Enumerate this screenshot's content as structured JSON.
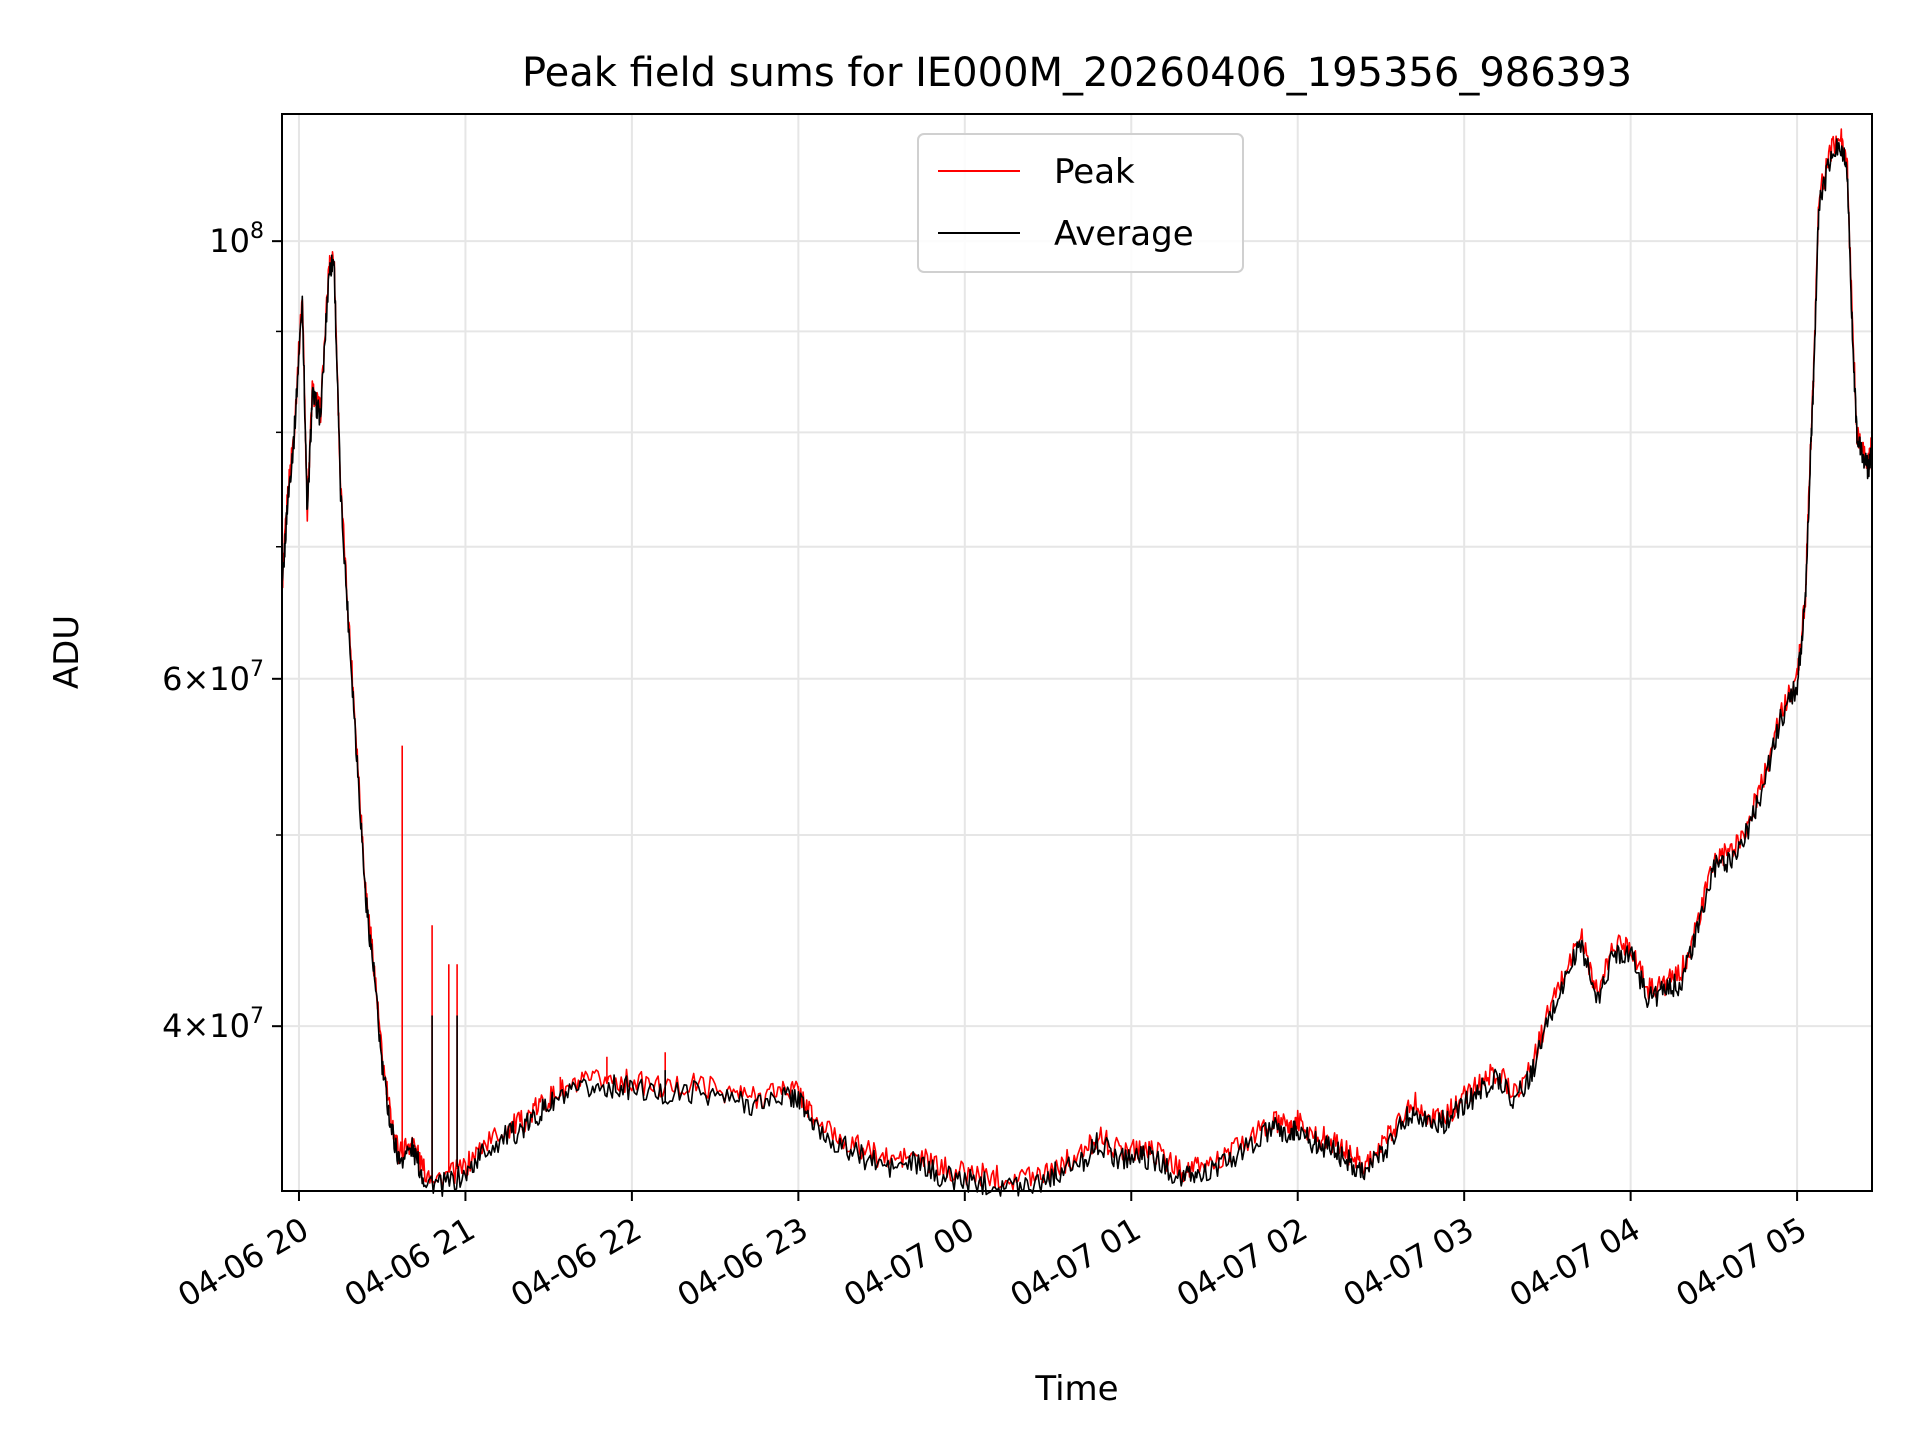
{
  "chart_data": {
    "type": "line",
    "title": "Peak field sums for IE000M_20260406_195356_986393",
    "xlabel": "Time",
    "ylabel": "ADU",
    "y_scale": "log",
    "ylim": [
      33000000,
      116000000
    ],
    "x_tick_labels": [
      "04-06 20",
      "04-06 21",
      "04-06 22",
      "04-06 23",
      "04-07 00",
      "04-07 01",
      "04-07 02",
      "04-07 03",
      "04-07 04",
      "04-07 05"
    ],
    "x_tick_hours": [
      20,
      21,
      22,
      23,
      24,
      25,
      26,
      27,
      28,
      29
    ],
    "xlim_hours": [
      19.898,
      29.45
    ],
    "y_major_ticks": [
      {
        "value": 40000000,
        "mantissa": "4",
        "exp": "7"
      },
      {
        "value": 60000000,
        "mantissa": "6",
        "exp": "7"
      },
      {
        "value": 100000000,
        "mantissa": "10",
        "exp": "8"
      }
    ],
    "y_minor_ticks": [
      50000000,
      70000000,
      80000000,
      90000000
    ],
    "legend": {
      "location": "upper center",
      "entries": [
        "Peak",
        "Average"
      ]
    },
    "series": [
      {
        "name": "Peak",
        "color": "#ff0000",
        "points": [
          [
            19.9,
            67000000
          ],
          [
            19.93,
            74000000
          ],
          [
            19.97,
            80000000
          ],
          [
            20.02,
            94000000
          ],
          [
            20.05,
            73000000
          ],
          [
            20.08,
            84000000
          ],
          [
            20.13,
            82000000
          ],
          [
            20.18,
            97000000
          ],
          [
            20.21,
            98500000
          ],
          [
            20.25,
            75000000
          ],
          [
            20.3,
            64000000
          ],
          [
            20.35,
            55000000
          ],
          [
            20.4,
            47000000
          ],
          [
            20.45,
            43000000
          ],
          [
            20.5,
            38500000
          ],
          [
            20.55,
            36000000
          ],
          [
            20.6,
            34500000
          ],
          [
            20.68,
            35000000
          ],
          [
            20.75,
            33800000
          ],
          [
            20.85,
            33500000
          ],
          [
            21.0,
            33900000
          ],
          [
            21.1,
            34800000
          ],
          [
            21.25,
            35500000
          ],
          [
            21.35,
            35800000
          ],
          [
            21.45,
            36500000
          ],
          [
            21.55,
            37000000
          ],
          [
            21.7,
            37400000
          ],
          [
            21.85,
            37600000
          ],
          [
            22.0,
            37500000
          ],
          [
            22.2,
            37200000
          ],
          [
            22.4,
            37400000
          ],
          [
            22.6,
            37000000
          ],
          [
            22.75,
            36800000
          ],
          [
            22.9,
            37200000
          ],
          [
            23.0,
            37100000
          ],
          [
            23.1,
            35800000
          ],
          [
            23.25,
            35100000
          ],
          [
            23.4,
            34600000
          ],
          [
            23.55,
            34200000
          ],
          [
            23.7,
            34400000
          ],
          [
            23.85,
            33900000
          ],
          [
            24.0,
            33700000
          ],
          [
            24.15,
            33600000
          ],
          [
            24.3,
            33500000
          ],
          [
            24.45,
            33700000
          ],
          [
            24.55,
            34000000
          ],
          [
            24.7,
            34400000
          ],
          [
            24.8,
            35200000
          ],
          [
            24.92,
            34600000
          ],
          [
            25.05,
            34700000
          ],
          [
            25.15,
            34500000
          ],
          [
            25.3,
            33800000
          ],
          [
            25.4,
            33900000
          ],
          [
            25.55,
            34300000
          ],
          [
            25.7,
            35000000
          ],
          [
            25.85,
            35800000
          ],
          [
            25.95,
            35500000
          ],
          [
            26.0,
            35800000
          ],
          [
            26.1,
            35200000
          ],
          [
            26.2,
            35000000
          ],
          [
            26.3,
            34500000
          ],
          [
            26.4,
            34100000
          ],
          [
            26.5,
            34700000
          ],
          [
            26.6,
            35800000
          ],
          [
            26.7,
            36600000
          ],
          [
            26.8,
            36000000
          ],
          [
            26.9,
            36100000
          ],
          [
            27.0,
            36800000
          ],
          [
            27.1,
            37400000
          ],
          [
            27.2,
            38000000
          ],
          [
            27.3,
            37000000
          ],
          [
            27.4,
            38000000
          ],
          [
            27.5,
            40500000
          ],
          [
            27.6,
            42500000
          ],
          [
            27.7,
            44500000
          ],
          [
            27.8,
            41500000
          ],
          [
            27.9,
            44000000
          ],
          [
            28.0,
            44000000
          ],
          [
            28.1,
            41800000
          ],
          [
            28.2,
            42000000
          ],
          [
            28.3,
            42500000
          ],
          [
            28.4,
            45000000
          ],
          [
            28.5,
            48500000
          ],
          [
            28.6,
            49000000
          ],
          [
            28.7,
            50500000
          ],
          [
            28.8,
            53500000
          ],
          [
            28.9,
            57500000
          ],
          [
            29.0,
            60000000
          ],
          [
            29.05,
            66000000
          ],
          [
            29.08,
            78000000
          ],
          [
            29.1,
            86000000
          ],
          [
            29.13,
            105000000
          ],
          [
            29.2,
            111000000
          ],
          [
            29.26,
            113000000
          ],
          [
            29.3,
            110000000
          ],
          [
            29.33,
            92000000
          ],
          [
            29.36,
            80000000
          ],
          [
            29.4,
            78000000
          ],
          [
            29.43,
            77000000
          ],
          [
            29.45,
            79000000
          ]
        ],
        "spikes": [
          [
            20.62,
            55500000
          ],
          [
            20.8,
            45000000
          ],
          [
            20.9,
            43000000
          ],
          [
            20.95,
            43000000
          ],
          [
            21.57,
            37700000
          ],
          [
            21.85,
            38600000
          ],
          [
            22.2,
            38800000
          ],
          [
            23.0,
            37300000
          ]
        ]
      },
      {
        "name": "Average",
        "color": "#000000",
        "points": [
          [
            19.9,
            66500000
          ],
          [
            19.93,
            73500000
          ],
          [
            19.97,
            79500000
          ],
          [
            20.02,
            93500000
          ],
          [
            20.05,
            72500000
          ],
          [
            20.08,
            83500000
          ],
          [
            20.13,
            81500000
          ],
          [
            20.18,
            96500000
          ],
          [
            20.21,
            98000000
          ],
          [
            20.25,
            74500000
          ],
          [
            20.3,
            63500000
          ],
          [
            20.35,
            54500000
          ],
          [
            20.4,
            46500000
          ],
          [
            20.45,
            42600000
          ],
          [
            20.5,
            38100000
          ],
          [
            20.55,
            35700000
          ],
          [
            20.6,
            34200000
          ],
          [
            20.68,
            34700000
          ],
          [
            20.75,
            33500000
          ],
          [
            20.85,
            33200000
          ],
          [
            21.0,
            33600000
          ],
          [
            21.1,
            34500000
          ],
          [
            21.25,
            35200000
          ],
          [
            21.35,
            35500000
          ],
          [
            21.45,
            36200000
          ],
          [
            21.55,
            36700000
          ],
          [
            21.7,
            37100000
          ],
          [
            21.85,
            37300000
          ],
          [
            22.0,
            37200000
          ],
          [
            22.2,
            36900000
          ],
          [
            22.4,
            37100000
          ],
          [
            22.6,
            36700000
          ],
          [
            22.75,
            36500000
          ],
          [
            22.9,
            36900000
          ],
          [
            23.0,
            36800000
          ],
          [
            23.1,
            35500000
          ],
          [
            23.25,
            34800000
          ],
          [
            23.4,
            34300000
          ],
          [
            23.55,
            33900000
          ],
          [
            23.7,
            34100000
          ],
          [
            23.85,
            33600000
          ],
          [
            24.0,
            33400000
          ],
          [
            24.15,
            33300000
          ],
          [
            24.3,
            33200000
          ],
          [
            24.45,
            33400000
          ],
          [
            24.55,
            33700000
          ],
          [
            24.7,
            34100000
          ],
          [
            24.8,
            34900000
          ],
          [
            24.92,
            34300000
          ],
          [
            25.05,
            34400000
          ],
          [
            25.15,
            34200000
          ],
          [
            25.3,
            33500000
          ],
          [
            25.4,
            33600000
          ],
          [
            25.55,
            34000000
          ],
          [
            25.7,
            34700000
          ],
          [
            25.85,
            35500000
          ],
          [
            25.95,
            35200000
          ],
          [
            26.0,
            35500000
          ],
          [
            26.1,
            34900000
          ],
          [
            26.2,
            34700000
          ],
          [
            26.3,
            34200000
          ],
          [
            26.4,
            33800000
          ],
          [
            26.5,
            34400000
          ],
          [
            26.6,
            35500000
          ],
          [
            26.7,
            36300000
          ],
          [
            26.8,
            35700000
          ],
          [
            26.9,
            35800000
          ],
          [
            27.0,
            36500000
          ],
          [
            27.1,
            37100000
          ],
          [
            27.2,
            37700000
          ],
          [
            27.3,
            36700000
          ],
          [
            27.4,
            37700000
          ],
          [
            27.5,
            40100000
          ],
          [
            27.6,
            42100000
          ],
          [
            27.7,
            44100000
          ],
          [
            27.8,
            41100000
          ],
          [
            27.9,
            43600000
          ],
          [
            28.0,
            43600000
          ],
          [
            28.1,
            41400000
          ],
          [
            28.2,
            41600000
          ],
          [
            28.3,
            42100000
          ],
          [
            28.4,
            44600000
          ],
          [
            28.5,
            48100000
          ],
          [
            28.6,
            48600000
          ],
          [
            28.7,
            50100000
          ],
          [
            28.8,
            53100000
          ],
          [
            28.9,
            57100000
          ],
          [
            29.0,
            59600000
          ],
          [
            29.05,
            65500000
          ],
          [
            29.08,
            77500000
          ],
          [
            29.1,
            85500000
          ],
          [
            29.13,
            104000000
          ],
          [
            29.2,
            110000000
          ],
          [
            29.26,
            112000000
          ],
          [
            29.3,
            109000000
          ],
          [
            29.33,
            91000000
          ],
          [
            29.36,
            79500000
          ],
          [
            29.4,
            77500000
          ],
          [
            29.43,
            76500000
          ],
          [
            29.45,
            78500000
          ]
        ],
        "spikes": [
          [
            20.8,
            40500000
          ],
          [
            20.95,
            40500000
          ],
          [
            21.85,
            37000000
          ],
          [
            22.2,
            38000000
          ]
        ]
      }
    ]
  }
}
